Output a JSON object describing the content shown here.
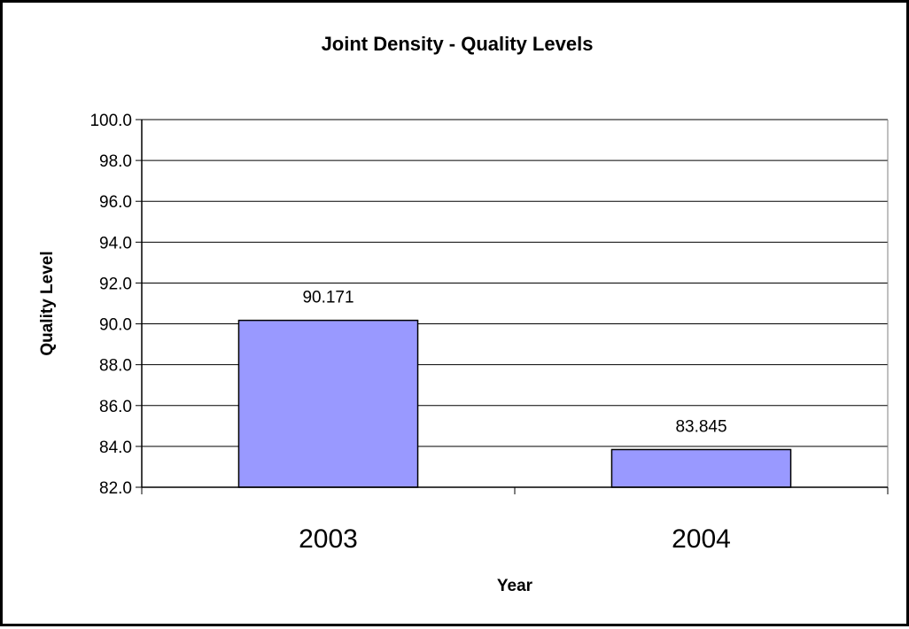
{
  "chart_data": {
    "type": "bar",
    "title": "Joint Density - Quality Levels",
    "xlabel": "Year",
    "ylabel": "Quality Level",
    "categories": [
      "2003",
      "2004"
    ],
    "values": [
      90.171,
      83.845
    ],
    "data_labels": [
      "90.171",
      "83.845"
    ],
    "ylim": [
      82.0,
      100.0
    ],
    "yticks": [
      "82.0",
      "84.0",
      "86.0",
      "88.0",
      "90.0",
      "92.0",
      "94.0",
      "96.0",
      "98.0",
      "100.0"
    ],
    "grid": true,
    "legend": "none",
    "bar_color": "#9999ff"
  }
}
